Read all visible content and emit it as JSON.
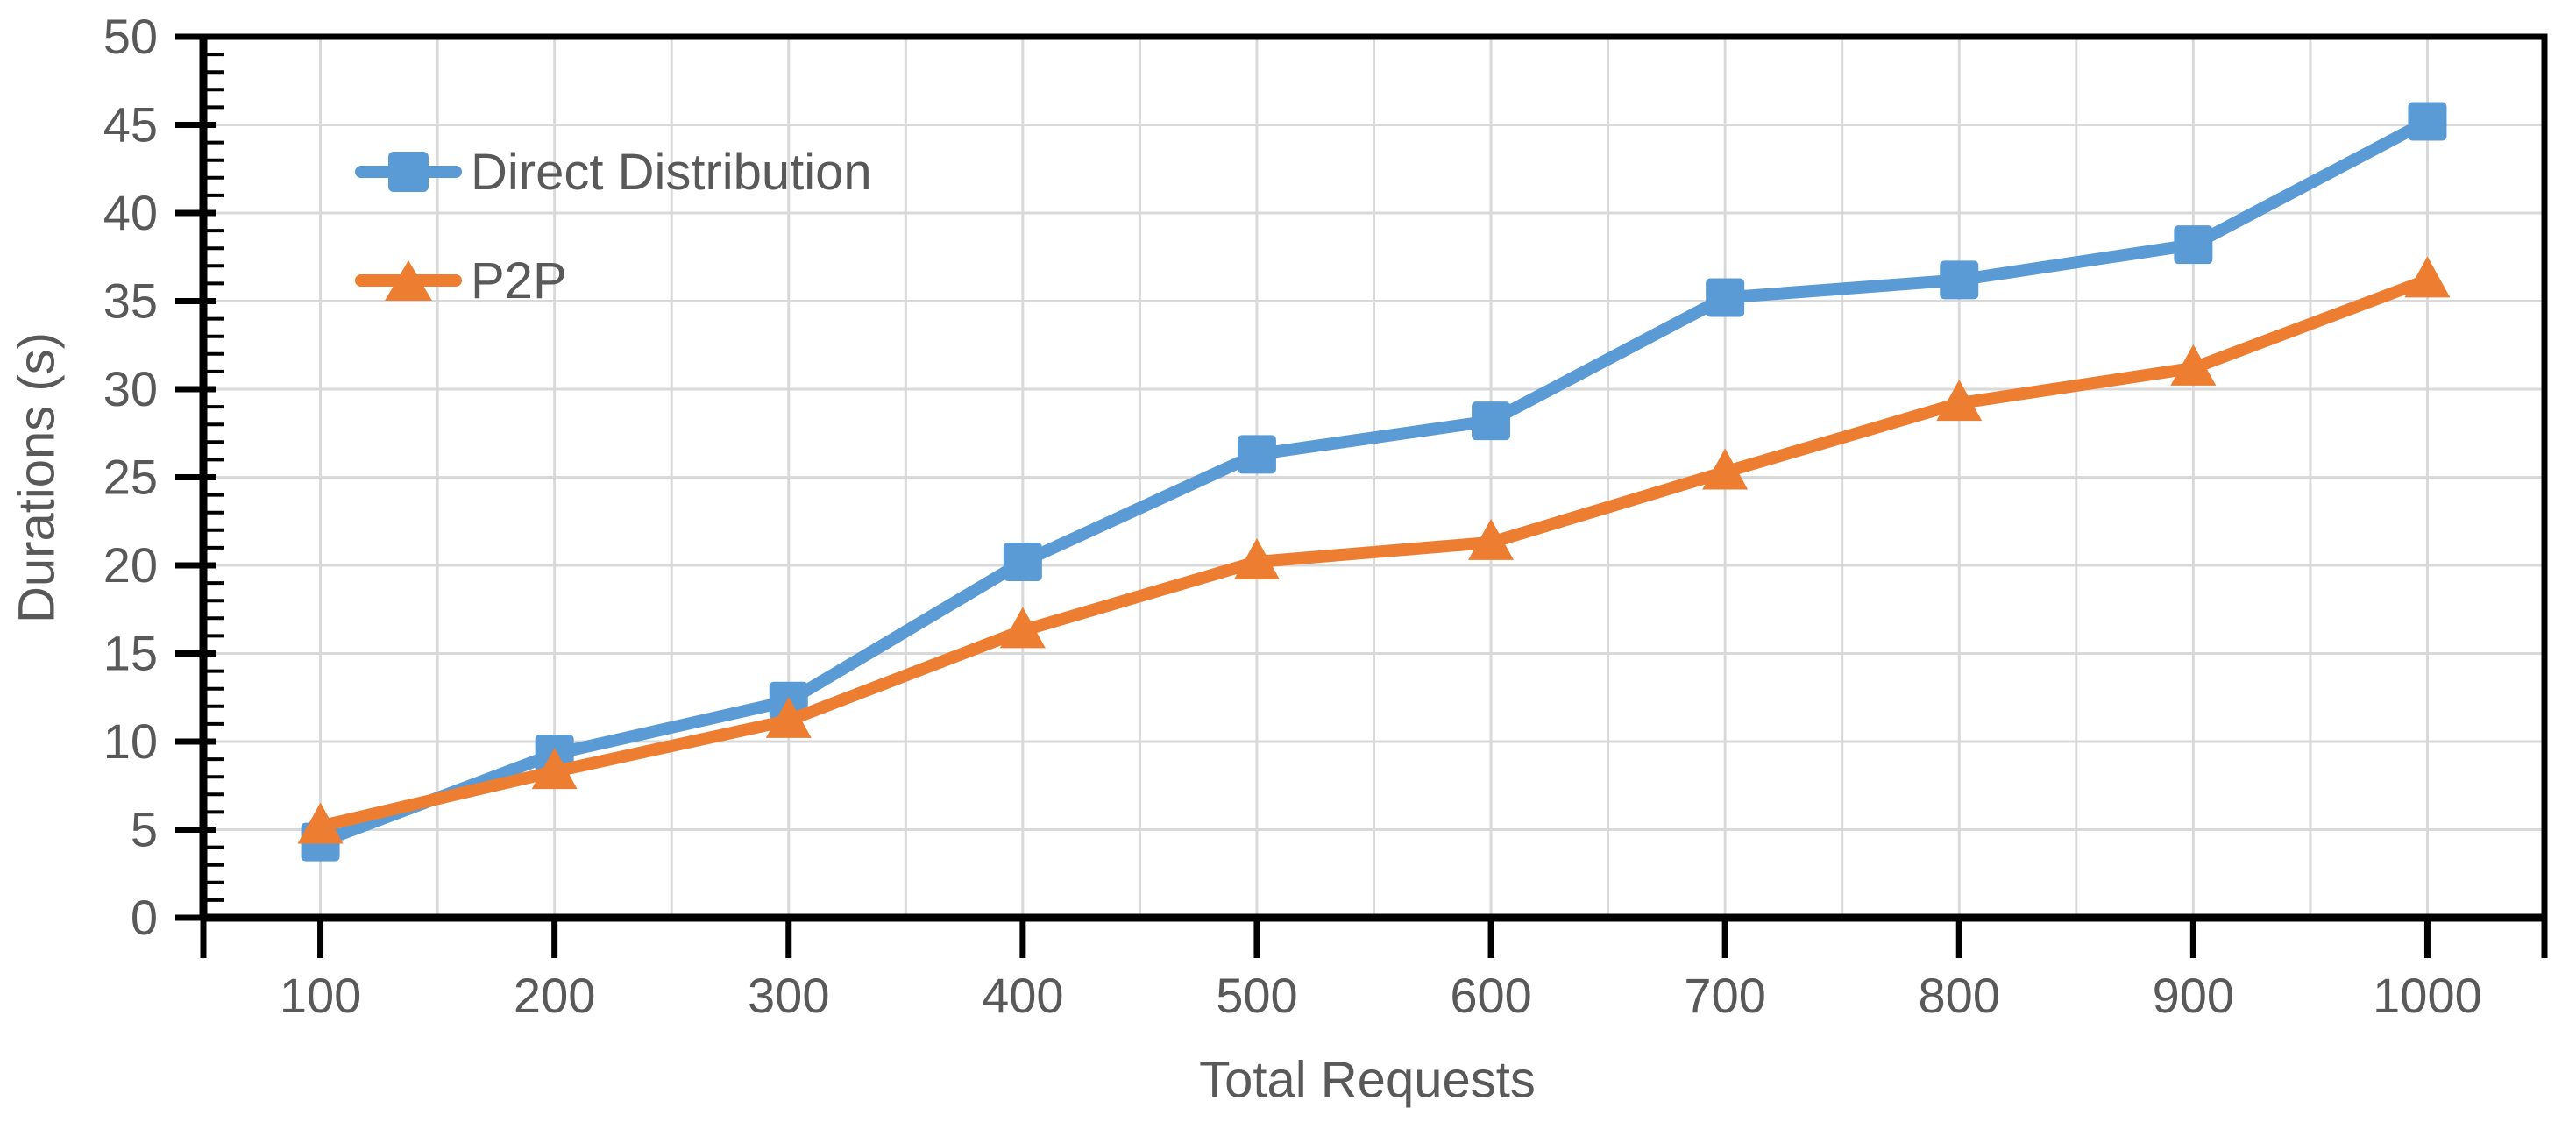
{
  "chart_data": {
    "type": "line",
    "title": "",
    "xlabel": "Total Requests",
    "ylabel": "Durations (s)",
    "x": [
      100,
      200,
      300,
      400,
      500,
      600,
      700,
      800,
      900,
      1000
    ],
    "series": [
      {
        "name": "Direct Distribution",
        "marker": "square",
        "color": "#5B9BD5",
        "values": [
          4.3,
          9.3,
          12.3,
          20.2,
          26.3,
          28.2,
          35.2,
          36.2,
          38.2,
          45.2
        ]
      },
      {
        "name": "P2P",
        "marker": "triangle",
        "color": "#ED7D31",
        "values": [
          5.2,
          8.3,
          11.2,
          16.3,
          20.2,
          21.3,
          25.3,
          29.2,
          31.2,
          36.2
        ]
      }
    ],
    "xlim": [
      50,
      1050
    ],
    "ylim": [
      0,
      50
    ],
    "y_ticks": [
      0,
      5,
      10,
      15,
      20,
      25,
      30,
      35,
      40,
      45,
      50
    ],
    "y_minor_tick_step": 1,
    "x_gridline_step": 50,
    "grid": true,
    "legend_position": "top-left-inside",
    "colors": {
      "grid": "#D9D9D9",
      "axis": "#000000",
      "text": "#595959",
      "background": "#FFFFFF"
    }
  }
}
